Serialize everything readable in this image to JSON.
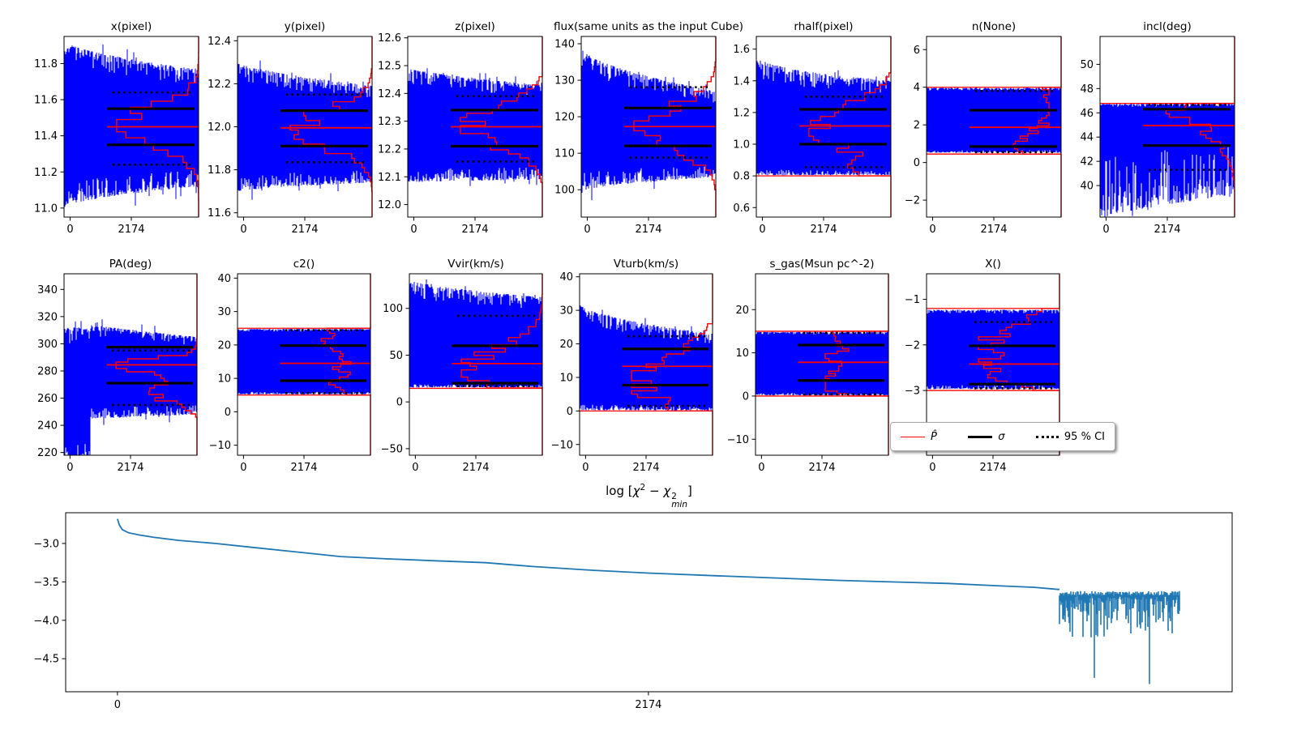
{
  "colors": {
    "trace": "#0000ff",
    "pdf": "#ff0000",
    "sigma": "#000000",
    "ci": "#000000",
    "chi2_line": "#1f77b4"
  },
  "legend": {
    "items": [
      {
        "label": "P̂"
      },
      {
        "label": "σ"
      },
      {
        "label": "95 % CI"
      }
    ]
  },
  "chi2_title": {
    "log": "log [",
    "chi_a": "χ",
    "exp_a": "2",
    "minus": " − ",
    "chi_b": "χ",
    "exp_b": "2",
    "sub_b": "min",
    "close": "]"
  },
  "chart_data": [
    {
      "id": "x",
      "type": "trace",
      "row": 1,
      "col": 0,
      "title": "x(pixel)",
      "xticks": [
        0,
        2174
      ],
      "xlim": [
        0,
        4348
      ],
      "yticks": [
        11.0,
        11.2,
        11.4,
        11.6,
        11.8
      ],
      "ytick_decimals": 1,
      "ylim": [
        10.95,
        11.95
      ],
      "median": 11.45,
      "sigma": [
        11.35,
        11.55
      ],
      "ci95": [
        11.24,
        11.64
      ],
      "bounds": null,
      "trace": {
        "lo0": 11.0,
        "hi0": 11.93,
        "lo1": 11.12,
        "hi1": 11.77,
        "ragged": 0.14,
        "ease": 0.6
      },
      "hist": {
        "type": "gauss",
        "peaks": [
          {
            "c": 11.45,
            "s": 0.105,
            "w": 1
          }
        ],
        "range": [
          11.05,
          11.93
        ]
      }
    },
    {
      "id": "y",
      "type": "trace",
      "row": 1,
      "col": 1,
      "title": "y(pixel)",
      "xticks": [
        0,
        2174
      ],
      "xlim": [
        0,
        4348
      ],
      "yticks": [
        11.6,
        11.8,
        12.0,
        12.2,
        12.4
      ],
      "ytick_decimals": 1,
      "ylim": [
        11.58,
        12.42
      ],
      "median": 11.995,
      "sigma": [
        11.91,
        12.075
      ],
      "ci95": [
        11.835,
        12.15
      ],
      "bounds": null,
      "trace": {
        "lo0": 11.7,
        "hi0": 12.3,
        "lo1": 11.74,
        "hi1": 12.19,
        "ragged": 0.13,
        "ease": 0.7
      },
      "hist": {
        "type": "gauss",
        "peaks": [
          {
            "c": 11.99,
            "s": 0.085,
            "w": 1
          }
        ],
        "range": [
          11.7,
          12.27
        ]
      }
    },
    {
      "id": "z",
      "type": "trace",
      "row": 1,
      "col": 2,
      "title": "z(pixel)",
      "xticks": [
        0,
        2174
      ],
      "xlim": [
        0,
        4348
      ],
      "yticks": [
        12.0,
        12.1,
        12.2,
        12.3,
        12.4,
        12.5,
        12.6
      ],
      "ytick_decimals": 1,
      "ylim": [
        11.955,
        12.605
      ],
      "median": 12.28,
      "sigma": [
        12.21,
        12.34
      ],
      "ci95": [
        12.155,
        12.39
      ],
      "bounds": null,
      "trace": {
        "lo0": 12.08,
        "hi0": 12.49,
        "lo1": 12.09,
        "hi1": 12.43,
        "ragged": 0.13,
        "ease": 0.8
      },
      "hist": {
        "type": "gauss",
        "peaks": [
          {
            "c": 12.28,
            "s": 0.068,
            "w": 1
          }
        ],
        "range": [
          12.08,
          12.46
        ]
      }
    },
    {
      "id": "flux",
      "type": "trace",
      "row": 1,
      "col": 3,
      "title": "flux(same units as the input Cube)",
      "xticks": [
        0,
        2174
      ],
      "xlim": [
        0,
        4348
      ],
      "yticks": [
        100,
        110,
        120,
        130,
        140
      ],
      "ytick_decimals": 0,
      "ylim": [
        92.5,
        142
      ],
      "median": 117.3,
      "sigma": [
        112,
        122.4
      ],
      "ci95": [
        108.8,
        128.1
      ],
      "bounds": null,
      "trace": {
        "lo0": 99.5,
        "hi0": 139,
        "lo1": 103.5,
        "hi1": 127,
        "ragged": 0.14,
        "ease": 0.6
      },
      "hist": {
        "type": "gauss",
        "peaks": [
          {
            "c": 116.8,
            "s": 5.5,
            "w": 1
          }
        ],
        "range": [
          100,
          135
        ]
      }
    },
    {
      "id": "rhalf",
      "type": "trace",
      "row": 1,
      "col": 4,
      "title": "rhalf(pixel)",
      "xticks": [
        0,
        2174
      ],
      "xlim": [
        0,
        4348
      ],
      "yticks": [
        0.6,
        0.8,
        1.0,
        1.2,
        1.4,
        1.6
      ],
      "ytick_decimals": 1,
      "ylim": [
        0.54,
        1.68
      ],
      "median": 1.115,
      "sigma": [
        1.0,
        1.22
      ],
      "ci95": [
        0.855,
        1.3
      ],
      "bounds": {
        "lo": 0.8
      },
      "trace": {
        "lo0": 0.805,
        "hi0": 1.57,
        "lo1": 0.805,
        "hi1": 1.4,
        "ragged_hi": 0.16,
        "ragged_lo": 0.05,
        "ease": 0.45
      },
      "hist": {
        "type": "gauss",
        "peaks": [
          {
            "c": 1.1,
            "s": 0.13,
            "w": 1
          },
          {
            "c": 0.84,
            "s": 0.04,
            "w": 0.35
          }
        ],
        "range": [
          0.8,
          1.45
        ]
      }
    },
    {
      "id": "n",
      "type": "trace",
      "row": 1,
      "col": 5,
      "title": "n(None)",
      "xticks": [
        0,
        2174
      ],
      "xlim": [
        0,
        4348
      ],
      "yticks": [
        -2,
        0,
        2,
        4,
        6
      ],
      "ytick_decimals": 0,
      "ylim": [
        -2.9,
        6.7
      ],
      "median": 1.87,
      "sigma": [
        0.85,
        2.78
      ],
      "ci95": [
        0.55,
        3.8
      ],
      "bounds": {
        "lo": 0.45,
        "hi": 4.0
      },
      "trace": {
        "lo0": 0.52,
        "hi0": 3.97,
        "lo1": 0.52,
        "hi1": 3.97,
        "ragged": 0.04,
        "ease": 1
      },
      "hist": {
        "type": "flat",
        "range": [
          0.45,
          4.0
        ]
      }
    },
    {
      "id": "incl",
      "type": "trace",
      "row": 1,
      "col": 6,
      "title": "incl(deg)",
      "xticks": [
        0,
        2174
      ],
      "xlim": [
        0,
        4348
      ],
      "yticks": [
        40,
        42,
        44,
        46,
        48,
        50
      ],
      "ytick_decimals": 0,
      "ylim": [
        37.4,
        52.3
      ],
      "median": 44.95,
      "sigma": [
        43.3,
        46.3
      ],
      "ci95": [
        41.3,
        46.65
      ],
      "bounds": {
        "hi": 46.78
      },
      "trace": {
        "lo0": 37.5,
        "hi0": 46.75,
        "lo1": 39.3,
        "hi1": 46.75,
        "ragged_lo": 0.55,
        "ragged_hi": 0.03,
        "ease": 1
      },
      "hist": {
        "type": "ramp",
        "range": [
          39.3,
          46.78
        ]
      }
    },
    {
      "id": "pa",
      "type": "trace",
      "row": 2,
      "col": 0,
      "title": "PA(deg)",
      "xticks": [
        0,
        2174
      ],
      "xlim": [
        0,
        4348
      ],
      "yticks": [
        220,
        240,
        260,
        280,
        300,
        320,
        340
      ],
      "ytick_decimals": 0,
      "ylim": [
        218,
        351.5
      ],
      "median": 284.5,
      "sigma": [
        271,
        297.5
      ],
      "ci95": [
        255,
        295
      ],
      "bounds": null,
      "burnin": {
        "frac": 0.2,
        "hi": 312
      },
      "trace": {
        "lo0": 244,
        "hi0": 316,
        "lo1": 248,
        "hi1": 305,
        "ragged": 0.12,
        "ease": 1
      },
      "hist": {
        "type": "gauss",
        "peaks": [
          {
            "c": 284.5,
            "s": 3.8,
            "w": 1
          },
          {
            "c": 262,
            "s": 6,
            "w": 0.5
          },
          {
            "c": 277,
            "s": 8,
            "w": 0.45
          }
        ],
        "range": [
          246,
          308
        ]
      }
    },
    {
      "id": "c2",
      "type": "trace",
      "row": 2,
      "col": 1,
      "title": "c2()",
      "xticks": [
        0,
        2174
      ],
      "xlim": [
        0,
        4348
      ],
      "yticks": [
        -10,
        0,
        10,
        20,
        30,
        40
      ],
      "ytick_decimals": 0,
      "ylim": [
        -13,
        41.3
      ],
      "median": 14.5,
      "sigma": [
        9.3,
        19.8
      ],
      "ci95": [
        5.6,
        24.4
      ],
      "bounds": {
        "lo": 5,
        "hi": 25
      },
      "trace": {
        "lo0": 5.2,
        "hi0": 24.8,
        "lo1": 5.2,
        "hi1": 24.8,
        "ragged": 0.04,
        "ease": 1
      },
      "hist": {
        "type": "flat",
        "range": [
          5,
          25
        ]
      }
    },
    {
      "id": "vvir",
      "type": "trace",
      "row": 2,
      "col": 2,
      "title": "Vvir(km/s)",
      "xticks": [
        0,
        2174
      ],
      "xlim": [
        0,
        4348
      ],
      "yticks": [
        -50,
        0,
        50,
        100
      ],
      "ytick_decimals": 0,
      "ylim": [
        -57,
        137
      ],
      "median": 41,
      "sigma": [
        20,
        60
      ],
      "ci95": [
        17,
        92
      ],
      "bounds": {
        "lo": 14.5
      },
      "trace": {
        "lo0": 15.5,
        "hi0": 130,
        "lo1": 15.5,
        "hi1": 112,
        "ragged_hi": 0.15,
        "ragged_lo": 0.03,
        "ease": 0.7
      },
      "hist": {
        "type": "gauss",
        "peaks": [
          {
            "c": 35,
            "s": 22,
            "w": 1
          }
        ],
        "range": [
          15,
          115
        ]
      }
    },
    {
      "id": "vturb",
      "type": "trace",
      "row": 2,
      "col": 3,
      "title": "Vturb(km/s)",
      "xticks": [
        0,
        2174
      ],
      "xlim": [
        0,
        4348
      ],
      "yticks": [
        -10,
        0,
        10,
        20,
        30,
        40
      ],
      "ytick_decimals": 0,
      "ylim": [
        -13.2,
        40.9
      ],
      "median": 13.3,
      "sigma": [
        7.7,
        18.5
      ],
      "ci95": [
        1.5,
        22.3
      ],
      "bounds": {
        "lo": 0
      },
      "trace": {
        "lo0": 0.2,
        "hi0": 32,
        "lo1": 0.2,
        "hi1": 23,
        "ragged_hi": 0.14,
        "ragged_lo": 0.06,
        "ease": 0.6
      },
      "hist": {
        "type": "gauss",
        "peaks": [
          {
            "c": 9,
            "s": 7,
            "w": 1
          }
        ],
        "range": [
          0,
          26
        ]
      }
    },
    {
      "id": "s_gas",
      "type": "trace",
      "row": 2,
      "col": 4,
      "title": "s_gas(Msun pc^-2)",
      "xticks": [
        0,
        2174
      ],
      "xlim": [
        0,
        4348
      ],
      "yticks": [
        -10,
        0,
        10,
        20
      ],
      "ytick_decimals": 0,
      "ylim": [
        -13.7,
        28.3
      ],
      "median": 7.8,
      "sigma": [
        3.6,
        11.8
      ],
      "ci95": [
        0.4,
        14.6
      ],
      "bounds": {
        "lo": 0,
        "hi": 15
      },
      "trace": {
        "lo0": 0.15,
        "hi0": 14.85,
        "lo1": 0.15,
        "hi1": 14.85,
        "ragged": 0.04,
        "ease": 1
      },
      "hist": {
        "type": "flat",
        "range": [
          0,
          15
        ]
      }
    },
    {
      "id": "x_param",
      "type": "trace",
      "row": 2,
      "col": 5,
      "title": "X()",
      "xticks": [
        0,
        2174
      ],
      "xlim": [
        0,
        4348
      ],
      "yticks": [
        -1,
        -2,
        -3
      ],
      "ytick_decimals": 0,
      "ylim": [
        -4.42,
        -0.44
      ],
      "median": -2.42,
      "sigma": [
        -2.86,
        -2.02
      ],
      "ci95": [
        -2.95,
        -1.5
      ],
      "bounds": {
        "lo": -3.0,
        "hi": -1.2
      },
      "trace": {
        "lo0": -2.97,
        "hi0": -1.23,
        "lo1": -2.97,
        "hi1": -1.23,
        "ragged": 0.05,
        "ease": 1
      },
      "hist": {
        "type": "gauss",
        "peaks": [
          {
            "c": -2.2,
            "s": 0.6,
            "w": 1
          }
        ],
        "range": [
          -3.0,
          -1.2
        ]
      }
    },
    {
      "id": "chi2",
      "type": "line",
      "title": "log [chi^2 - chi^2_min]",
      "xticks": [
        0,
        2174
      ],
      "xlim": [
        -212,
        4564
      ],
      "yticks": [
        -3.0,
        -3.5,
        -4.0,
        -4.5
      ],
      "ytick_decimals": 1,
      "ylim": [
        -4.93,
        -2.6
      ],
      "smooth": [
        [
          0,
          -2.68
        ],
        [
          8,
          -2.76
        ],
        [
          20,
          -2.82
        ],
        [
          45,
          -2.86
        ],
        [
          90,
          -2.89
        ],
        [
          150,
          -2.92
        ],
        [
          250,
          -2.96
        ],
        [
          400,
          -3.0
        ],
        [
          550,
          -3.05
        ],
        [
          700,
          -3.1
        ],
        [
          913,
          -3.17
        ],
        [
          1100,
          -3.2
        ],
        [
          1300,
          -3.225
        ],
        [
          1510,
          -3.25
        ],
        [
          1700,
          -3.3
        ],
        [
          1950,
          -3.35
        ],
        [
          2174,
          -3.385
        ],
        [
          2450,
          -3.42
        ],
        [
          2700,
          -3.45
        ],
        [
          2950,
          -3.48
        ],
        [
          3170,
          -3.5
        ],
        [
          3400,
          -3.52
        ],
        [
          3600,
          -3.55
        ],
        [
          3750,
          -3.57
        ],
        [
          3857,
          -3.6
        ]
      ],
      "noise": {
        "start": 3857,
        "end": 4348,
        "top": -3.62,
        "spikes": [
          [
            4000,
            -4.75
          ],
          [
            4225,
            -4.83
          ]
        ]
      }
    }
  ]
}
